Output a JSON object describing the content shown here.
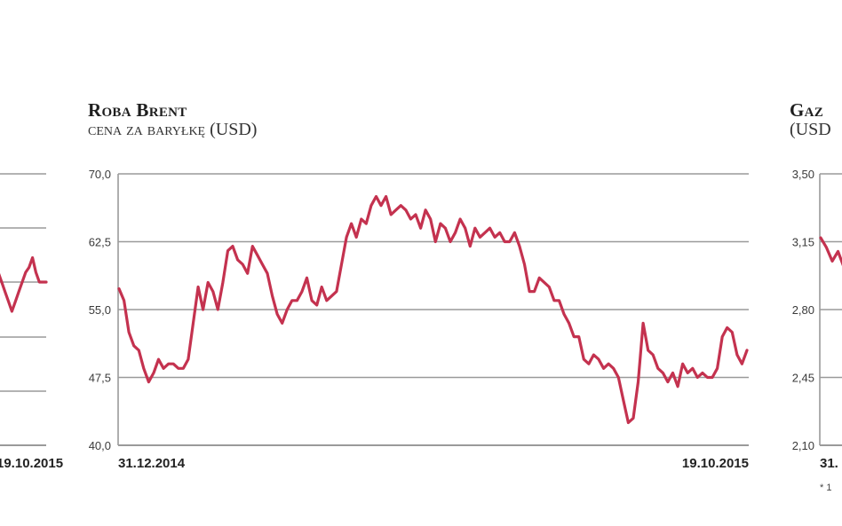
{
  "chart_data": [
    {
      "type": "line",
      "title": "",
      "subtitle": "",
      "x_labels": [
        "",
        "19.10.2015"
      ],
      "y_ticks": [],
      "series": [
        {
          "values": [
            58.0,
            57.0,
            56.0,
            55.0,
            54.0,
            55.0,
            56.0,
            57.0,
            58.0,
            58.5,
            59.5,
            58.0,
            57.0,
            57.0,
            57.0
          ]
        }
      ],
      "color": "#c4324f",
      "grid": "horizontal"
    },
    {
      "type": "line",
      "title": "Roba Brent",
      "subtitle": "cena za baryłkę (USD)",
      "x_labels": [
        "31.12.2014",
        "19.10.2015"
      ],
      "x_range": [
        "31.12.2014",
        "19.10.2015"
      ],
      "ylim": [
        40.0,
        70.0
      ],
      "y_ticks": [
        "70,0",
        "62,5",
        "55,0",
        "47,5",
        "40,0"
      ],
      "series": [
        {
          "values": [
            57.3,
            56.0,
            52.5,
            51.0,
            50.5,
            48.5,
            47.0,
            48.0,
            49.5,
            48.5,
            49.0,
            49.0,
            48.5,
            48.5,
            49.5,
            53.5,
            57.5,
            55.0,
            58.0,
            57.0,
            55.0,
            58.0,
            61.5,
            62.0,
            60.5,
            60.0,
            59.0,
            62.0,
            61.0,
            60.0,
            59.0,
            56.5,
            54.5,
            53.5,
            55.0,
            56.0,
            56.0,
            57.0,
            58.5,
            56.0,
            55.5,
            57.5,
            56.0,
            56.5,
            57.0,
            60.0,
            63.0,
            64.5,
            63.0,
            65.0,
            64.5,
            66.5,
            67.5,
            66.5,
            67.5,
            65.5,
            66.0,
            66.5,
            66.0,
            65.0,
            65.5,
            64.0,
            66.0,
            65.0,
            62.5,
            64.5,
            64.0,
            62.5,
            63.5,
            65.0,
            64.0,
            62.0,
            64.0,
            63.0,
            63.5,
            64.0,
            63.0,
            63.5,
            62.5,
            62.5,
            63.5,
            62.0,
            60.0,
            57.0,
            57.0,
            58.5,
            58.0,
            57.5,
            56.0,
            56.0,
            54.5,
            53.5,
            52.0,
            52.0,
            49.5,
            49.0,
            50.0,
            49.5,
            48.5,
            49.0,
            48.5,
            47.5,
            45.0,
            42.5,
            43.0,
            47.0,
            53.5,
            50.5,
            50.0,
            48.5,
            48.0,
            47.0,
            48.0,
            46.5,
            49.0,
            48.0,
            48.5,
            47.5,
            48.0,
            47.5,
            47.5,
            48.5,
            52.0,
            53.0,
            52.5,
            50.0,
            49.0,
            50.5
          ]
        }
      ],
      "color": "#c4324f",
      "grid": "horizontal"
    },
    {
      "type": "line",
      "title": "Gaz",
      "subtitle": "(USD",
      "x_labels": [
        "31."
      ],
      "ylim": [
        2.1,
        3.5
      ],
      "y_ticks": [
        "3,50",
        "3,15",
        "2,80",
        "2,45",
        "2,10"
      ],
      "series": [
        {
          "values": [
            3.17,
            3.12,
            3.05,
            3.1,
            3.02
          ]
        }
      ],
      "color": "#c4324f",
      "grid": "horizontal",
      "footnote": "* 1"
    }
  ]
}
